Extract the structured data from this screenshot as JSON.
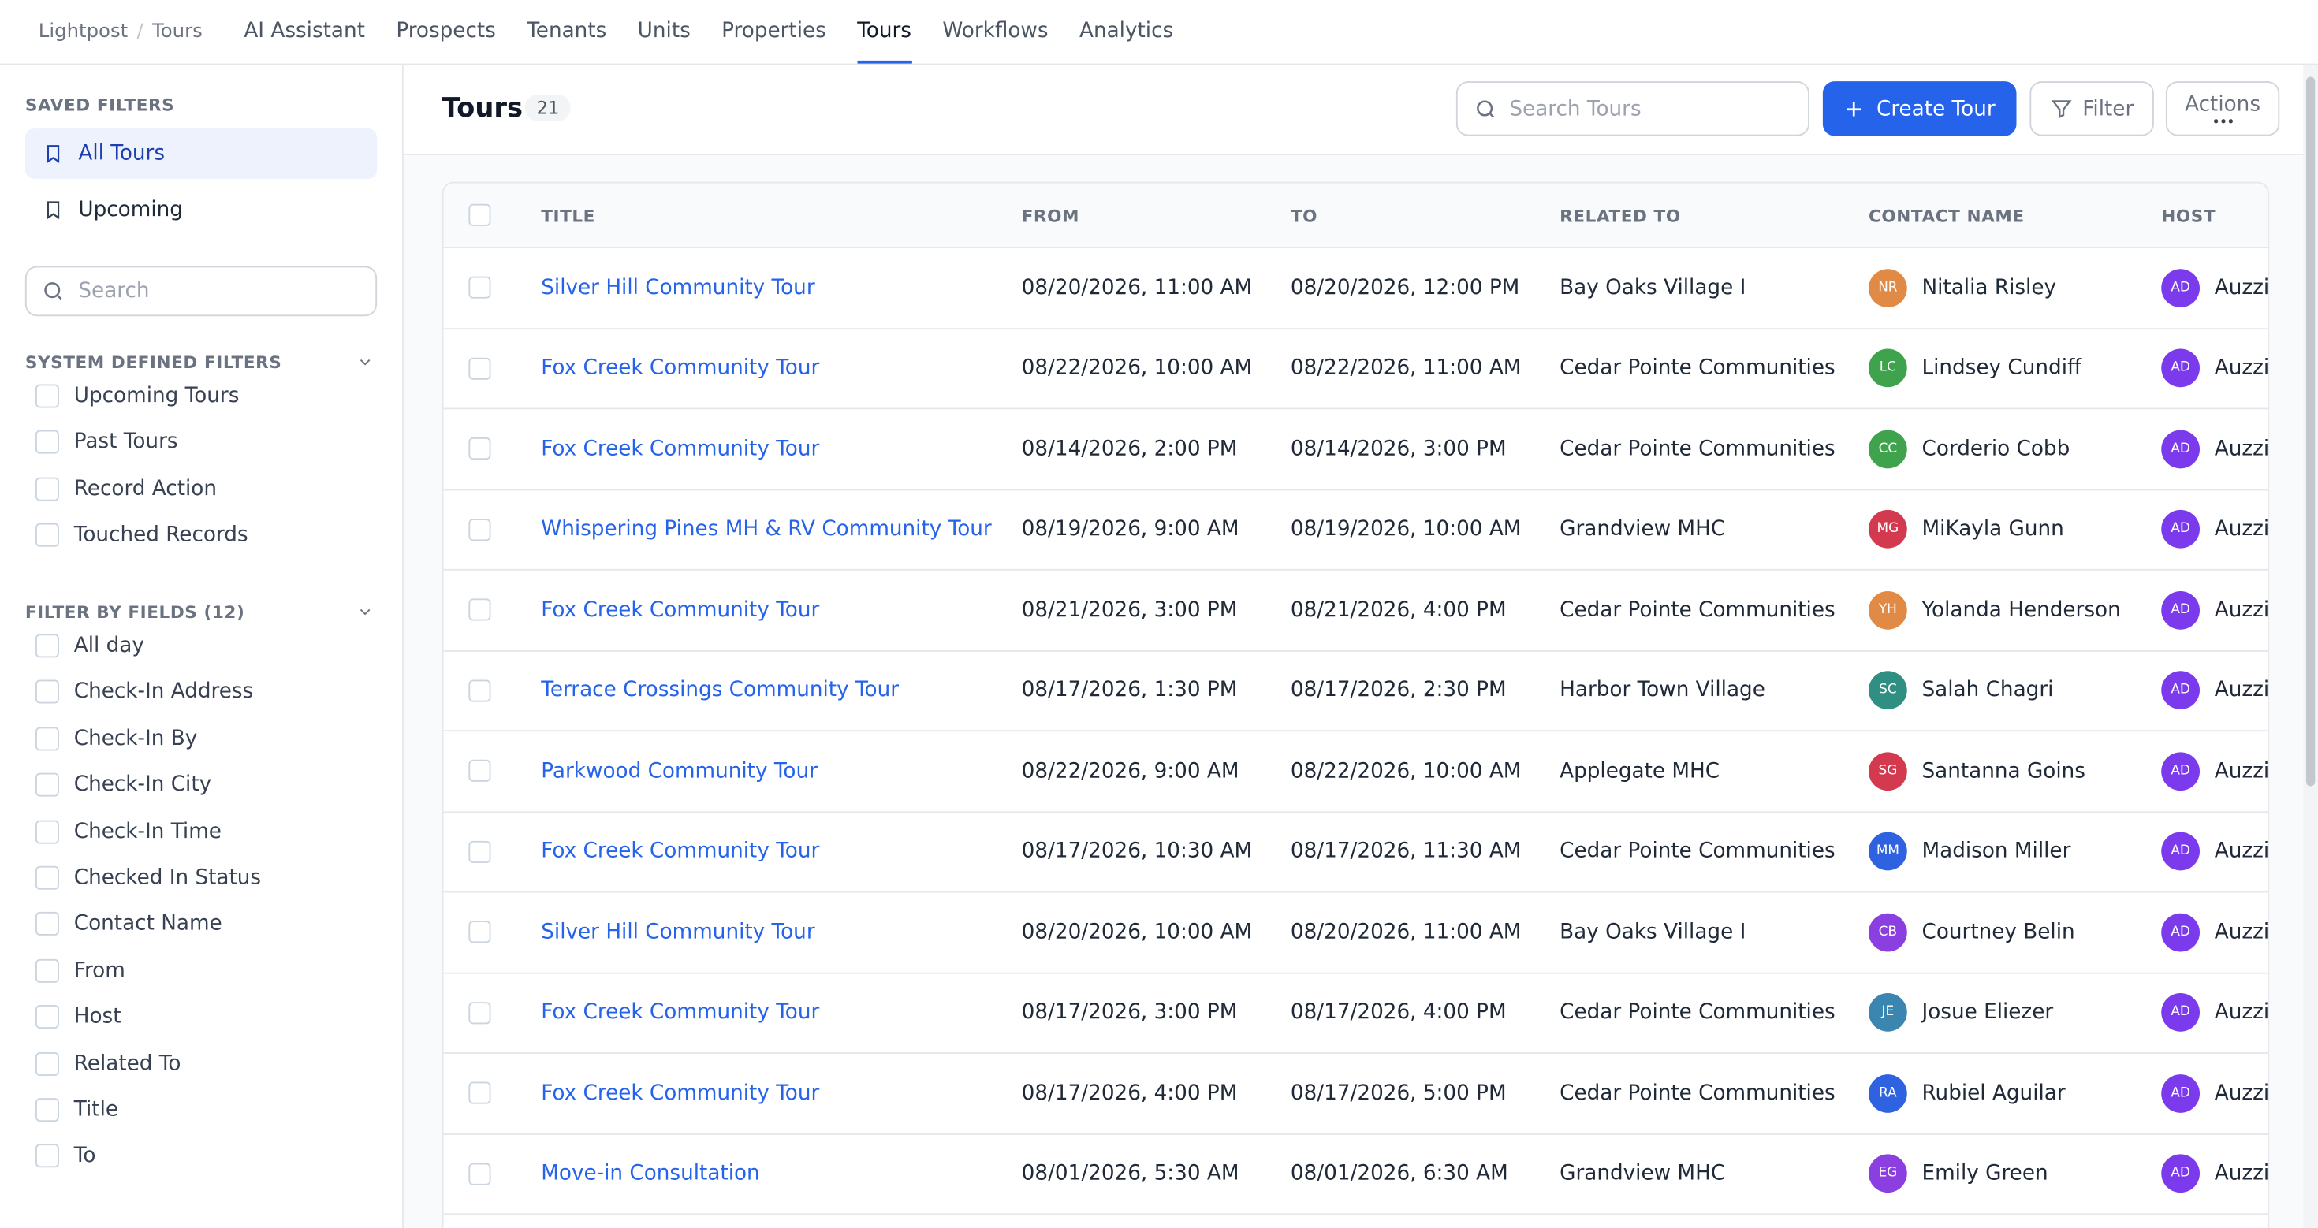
{
  "nav": {
    "breadcrumb": [
      "Lightpost",
      "Tours"
    ],
    "tabs": [
      "AI Assistant",
      "Prospects",
      "Tenants",
      "Units",
      "Properties",
      "Tours",
      "Workflows",
      "Analytics"
    ],
    "active_tab": 5
  },
  "sidebar": {
    "saved_title": "SAVED FILTERS",
    "saved": [
      "All Tours",
      "Upcoming"
    ],
    "search_placeholder": "Search",
    "system_title": "SYSTEM DEFINED FILTERS",
    "system": [
      "Upcoming Tours",
      "Past Tours",
      "Record Action",
      "Touched Records"
    ],
    "fields_title": "FILTER BY FIELDS (12)",
    "fields": [
      "All day",
      "Check-In Address",
      "Check-In By",
      "Check-In City",
      "Check-In Time",
      "Checked In Status",
      "Contact Name",
      "From",
      "Host",
      "Related To",
      "Title",
      "To"
    ]
  },
  "header": {
    "title": "Tours",
    "count": "21",
    "search_placeholder": "Search Tours",
    "create": "Create Tour",
    "filter": "Filter",
    "actions": "Actions"
  },
  "table": {
    "columns": [
      "TITLE",
      "FROM",
      "TO",
      "RELATED TO",
      "CONTACT NAME",
      "HOST"
    ],
    "rows": [
      {
        "title": "Silver Hill Community Tour",
        "from": "08/20/2026, 11:00 AM",
        "to": "08/20/2026, 12:00 PM",
        "related": "Bay Oaks Village I",
        "contact_initials": "NR",
        "contact": "Nitalia Risley",
        "contact_color": "#e08a45",
        "host_initials": "AD",
        "host": "Auzzi",
        "host_color": "#7c3aed"
      },
      {
        "title": "Fox Creek Community Tour",
        "from": "08/22/2026, 10:00 AM",
        "to": "08/22/2026, 11:00 AM",
        "related": "Cedar Pointe Communities",
        "contact_initials": "LC",
        "contact": "Lindsey Cundiff",
        "contact_color": "#3fa34d",
        "host_initials": "AD",
        "host": "Auzzi",
        "host_color": "#7c3aed"
      },
      {
        "title": "Fox Creek Community Tour",
        "from": "08/14/2026, 2:00 PM",
        "to": "08/14/2026, 3:00 PM",
        "related": "Cedar Pointe Communities",
        "contact_initials": "CC",
        "contact": "Corderio Cobb",
        "contact_color": "#3fa34d",
        "host_initials": "AD",
        "host": "Auzzi",
        "host_color": "#7c3aed"
      },
      {
        "title": "Whispering Pines MH & RV Community Tour",
        "from": "08/19/2026, 9:00 AM",
        "to": "08/19/2026, 10:00 AM",
        "related": "Grandview MHC",
        "contact_initials": "MG",
        "contact": "MiKayla Gunn",
        "contact_color": "#d43a4f",
        "host_initials": "AD",
        "host": "Auzzi",
        "host_color": "#7c3aed"
      },
      {
        "title": "Fox Creek Community Tour",
        "from": "08/21/2026, 3:00 PM",
        "to": "08/21/2026, 4:00 PM",
        "related": "Cedar Pointe Communities",
        "contact_initials": "YH",
        "contact": "Yolanda Henderson",
        "contact_color": "#e08a45",
        "host_initials": "AD",
        "host": "Auzzi",
        "host_color": "#7c3aed"
      },
      {
        "title": "Terrace Crossings Community Tour",
        "from": "08/17/2026, 1:30 PM",
        "to": "08/17/2026, 2:30 PM",
        "related": "Harbor Town Village",
        "contact_initials": "SC",
        "contact": "Salah Chagri",
        "contact_color": "#2f8f83",
        "host_initials": "AD",
        "host": "Auzzi",
        "host_color": "#7c3aed"
      },
      {
        "title": "Parkwood Community Tour",
        "from": "08/22/2026, 9:00 AM",
        "to": "08/22/2026, 10:00 AM",
        "related": "Applegate MHC",
        "contact_initials": "SG",
        "contact": "Santanna Goins",
        "contact_color": "#d43a4f",
        "host_initials": "AD",
        "host": "Auzzi",
        "host_color": "#7c3aed"
      },
      {
        "title": "Fox Creek Community Tour",
        "from": "08/17/2026, 10:30 AM",
        "to": "08/17/2026, 11:30 AM",
        "related": "Cedar Pointe Communities",
        "contact_initials": "MM",
        "contact": "Madison Miller",
        "contact_color": "#2f62e0",
        "host_initials": "AD",
        "host": "Auzzi",
        "host_color": "#7c3aed"
      },
      {
        "title": "Silver Hill Community Tour",
        "from": "08/20/2026, 10:00 AM",
        "to": "08/20/2026, 11:00 AM",
        "related": "Bay Oaks Village I",
        "contact_initials": "CB",
        "contact": "Courtney Belin",
        "contact_color": "#8b3fe0",
        "host_initials": "AD",
        "host": "Auzzi",
        "host_color": "#7c3aed"
      },
      {
        "title": "Fox Creek Community Tour",
        "from": "08/17/2026, 3:00 PM",
        "to": "08/17/2026, 4:00 PM",
        "related": "Cedar Pointe Communities",
        "contact_initials": "JE",
        "contact": "Josue Eliezer",
        "contact_color": "#3a86b0",
        "host_initials": "AD",
        "host": "Auzzi",
        "host_color": "#7c3aed"
      },
      {
        "title": "Fox Creek Community Tour",
        "from": "08/17/2026, 4:00 PM",
        "to": "08/17/2026, 5:00 PM",
        "related": "Cedar Pointe Communities",
        "contact_initials": "RA",
        "contact": "Rubiel Aguilar",
        "contact_color": "#2f62e0",
        "host_initials": "AD",
        "host": "Auzzi",
        "host_color": "#7c3aed"
      },
      {
        "title": "Move-in Consultation",
        "from": "08/01/2026, 5:30 AM",
        "to": "08/01/2026, 6:30 AM",
        "related": "Grandview MHC",
        "contact_initials": "EG",
        "contact": "Emily Green",
        "contact_color": "#8b3fe0",
        "host_initials": "AD",
        "host": "Auzzi",
        "host_color": "#7c3aed"
      }
    ]
  }
}
